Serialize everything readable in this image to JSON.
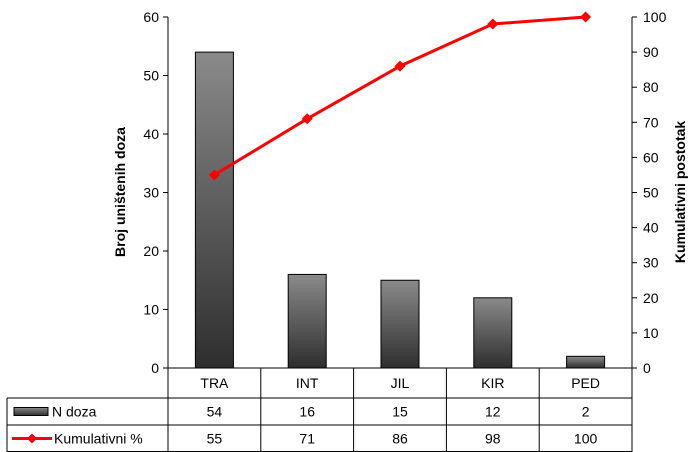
{
  "chart_data": {
    "type": "bar",
    "categories": [
      "TRA",
      "INT",
      "JIL",
      "KIR",
      "PED"
    ],
    "series": [
      {
        "name": "N doza",
        "type": "bar",
        "axis": "left",
        "values": [
          54,
          16,
          15,
          12,
          2
        ]
      },
      {
        "name": "Kumulativni %",
        "type": "line",
        "axis": "right",
        "values": [
          55,
          71,
          86,
          98,
          100
        ],
        "color": "#ff0000"
      }
    ],
    "ylabel": "Broj uništenih doza",
    "y2label": "Kumulativni postotak",
    "ylim": [
      0,
      60
    ],
    "y2lim": [
      0,
      100
    ],
    "yticks": [
      0,
      10,
      20,
      30,
      40,
      50,
      60
    ],
    "y2ticks": [
      0,
      10,
      20,
      30,
      40,
      50,
      60,
      70,
      80,
      90,
      100
    ],
    "data_table": true,
    "grid": false,
    "colors": {
      "bar_top": "#8a8a8a",
      "bar_bottom": "#2e2e2e",
      "line": "#ff0000"
    }
  }
}
